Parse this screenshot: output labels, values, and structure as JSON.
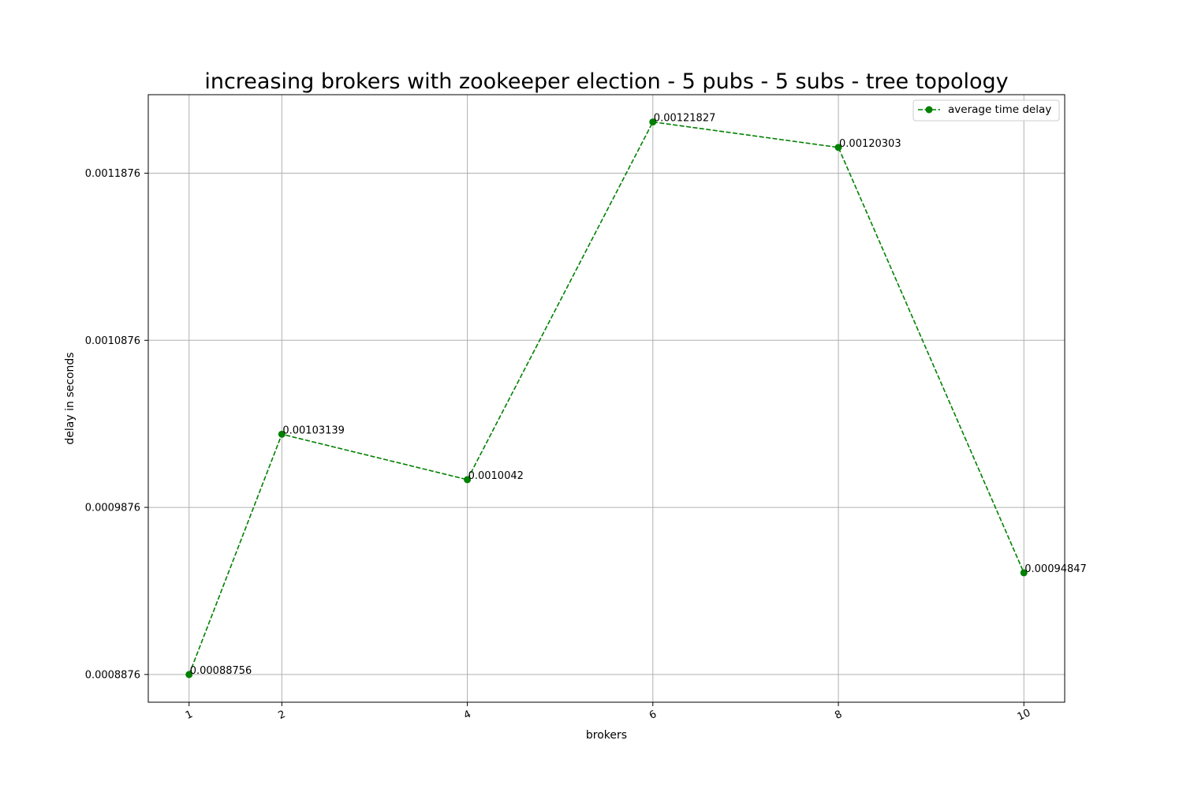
{
  "chart_data": {
    "type": "line",
    "title": "increasing brokers with zookeeper election - 5 pubs - 5 subs - tree topology",
    "xlabel": "brokers",
    "ylabel": "delay in seconds",
    "x": [
      1,
      2,
      4,
      6,
      8,
      10
    ],
    "xtick_labels": [
      "1",
      "2",
      "4",
      "6",
      "8",
      "10"
    ],
    "ytick_values": [
      0.0008876,
      0.0009876,
      0.0010876,
      0.0011876
    ],
    "ytick_labels": [
      "0.0008876",
      "0.0009876",
      "0.0010876",
      "0.0011876"
    ],
    "xlim": [
      0.56,
      10.44
    ],
    "ylim": [
      0.000871,
      0.0012346
    ],
    "grid": true,
    "legend_position": "top-right",
    "series": [
      {
        "name": "average time delay",
        "color": "#008000",
        "line_style": "dashed",
        "marker": "circle",
        "values": [
          0.00088756,
          0.00103139,
          0.0010042,
          0.00121827,
          0.00120303,
          0.00094847
        ],
        "data_labels": [
          "0.00088756",
          "0.00103139",
          "0.0010042",
          "0.00121827",
          "0.00120303",
          "0.00094847"
        ]
      }
    ]
  }
}
